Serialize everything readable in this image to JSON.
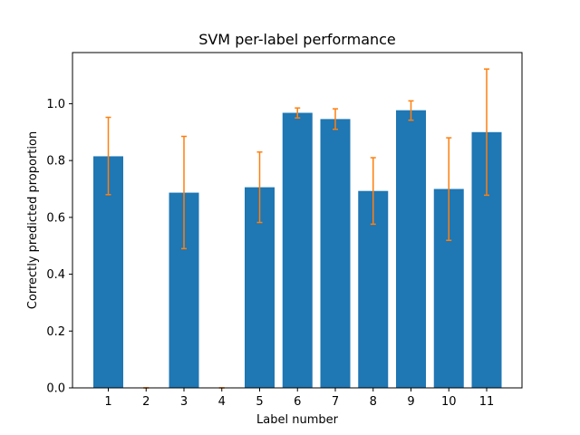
{
  "chart_data": {
    "type": "bar",
    "title": "SVM per-label performance",
    "xlabel": "Label number",
    "ylabel": "Correctly predicted proportion",
    "categories": [
      "1",
      "2",
      "3",
      "4",
      "5",
      "6",
      "7",
      "8",
      "9",
      "10",
      "11"
    ],
    "values": [
      0.815,
      0.0,
      0.687,
      0.0,
      0.706,
      0.968,
      0.946,
      0.693,
      0.977,
      0.7,
      0.9
    ],
    "error_low": [
      0.68,
      0.0,
      0.49,
      0.0,
      0.582,
      0.95,
      0.91,
      0.576,
      0.942,
      0.519,
      0.678
    ],
    "error_high": [
      0.952,
      0.0,
      0.885,
      0.0,
      0.83,
      0.985,
      0.982,
      0.81,
      1.01,
      0.88,
      1.122
    ],
    "ylim": [
      0,
      1.18
    ],
    "yticks": [
      0.0,
      0.2,
      0.4,
      0.6,
      0.8,
      1.0
    ],
    "ytick_labels": [
      "0.0",
      "0.2",
      "0.4",
      "0.6",
      "0.8",
      "1.0"
    ],
    "grid": false,
    "colors": {
      "bar": "#1f77b4",
      "error": "#ff7f0e",
      "axis": "#000000"
    }
  }
}
